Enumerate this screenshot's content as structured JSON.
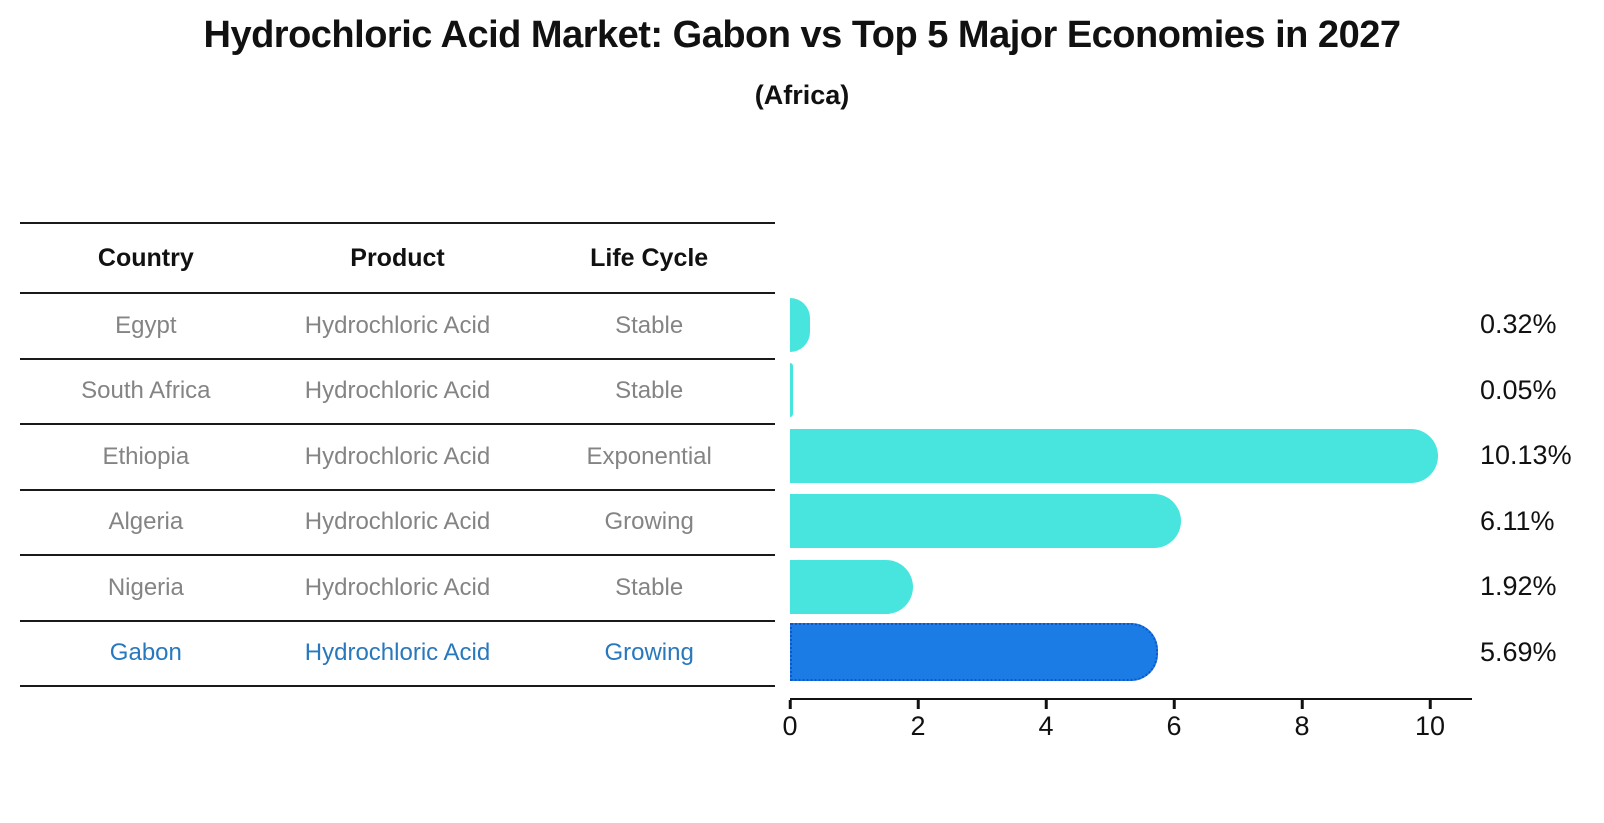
{
  "title": "Hydrochloric Acid Market: Gabon vs Top 5 Major Economies in 2027",
  "subtitle": "(Africa)",
  "table": {
    "headers": [
      "Country",
      "Product",
      "Life Cycle"
    ],
    "rows": [
      {
        "country": "Egypt",
        "product": "Hydrochloric Acid",
        "life_cycle": "Stable",
        "value_label": "0.32%",
        "highlight": false
      },
      {
        "country": "South Africa",
        "product": "Hydrochloric Acid",
        "life_cycle": "Stable",
        "value_label": "0.05%",
        "highlight": false
      },
      {
        "country": "Ethiopia",
        "product": "Hydrochloric Acid",
        "life_cycle": "Exponential",
        "value_label": "10.13%",
        "highlight": false
      },
      {
        "country": "Algeria",
        "product": "Hydrochloric Acid",
        "life_cycle": "Growing",
        "value_label": "6.11%",
        "highlight": false
      },
      {
        "country": "Nigeria",
        "product": "Hydrochloric Acid",
        "life_cycle": "Stable",
        "value_label": "1.92%",
        "highlight": false
      },
      {
        "country": "Gabon",
        "product": "Hydrochloric Acid",
        "life_cycle": "Growing",
        "value_label": "5.69%",
        "highlight": true
      }
    ]
  },
  "chart_data": {
    "type": "bar",
    "orientation": "horizontal",
    "title": "Hydrochloric Acid Market: Gabon vs Top 5 Major Economies in 2027",
    "subtitle": "(Africa)",
    "categories": [
      "Egypt",
      "South Africa",
      "Ethiopia",
      "Algeria",
      "Nigeria",
      "Gabon"
    ],
    "values": [
      0.32,
      0.05,
      10.13,
      6.11,
      1.92,
      5.69
    ],
    "value_labels": [
      "0.32%",
      "0.05%",
      "10.13%",
      "6.11%",
      "1.92%",
      "5.69%"
    ],
    "xlabel": "",
    "ylabel": "",
    "xlim": [
      0,
      10.66
    ],
    "x_ticks": [
      0,
      2,
      4,
      6,
      8,
      10
    ],
    "grid": false,
    "legend": "none",
    "bar_color": "#48E5DE",
    "highlight_bar_color": "#1B7CE5",
    "highlight_border_color": "#1056C8",
    "highlight_index": 5
  },
  "colors": {
    "background": "#FFFFFF",
    "text": "#111111",
    "table_text": "#848484",
    "highlight_text": "#2878BE",
    "line": "#1A1A1A"
  }
}
